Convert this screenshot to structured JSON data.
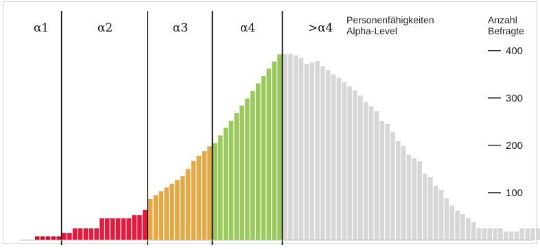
{
  "chart_data": {
    "type": "bar",
    "title": "",
    "legend_title": [
      "Personenfähigkeiten",
      "Alpha-Level"
    ],
    "ylabel": [
      "Anzahl",
      "Befragte"
    ],
    "ylim": [
      0,
      420
    ],
    "yticks": [
      100,
      200,
      300,
      400
    ],
    "levels": [
      {
        "label": "α1",
        "from": 0,
        "to": 5
      },
      {
        "label": "α2",
        "from": 5,
        "to": 21
      },
      {
        "label": "α3",
        "from": 21,
        "to": 33
      },
      {
        "label": "α4",
        "from": 33,
        "to": 46
      },
      {
        "label": ">α4",
        "from": 46,
        "to": 95
      }
    ],
    "colors": {
      "α1": "#c8102e",
      "α2": "#e8173c",
      "α3": "#e4a845",
      "α4": "#98c95a",
      ">α4": "#d7d7d7"
    },
    "values": [
      8,
      8,
      8,
      8,
      8,
      15,
      15,
      25,
      25,
      25,
      25,
      25,
      46,
      46,
      46,
      46,
      46,
      46,
      53,
      53,
      64,
      87,
      95,
      103,
      111,
      119,
      127,
      135,
      150,
      167,
      178,
      188,
      198,
      205,
      221,
      237,
      252,
      268,
      284,
      299,
      315,
      331,
      346,
      362,
      377,
      392,
      393,
      393,
      390,
      385,
      372,
      375,
      378,
      367,
      359,
      350,
      343,
      333,
      325,
      316,
      305,
      292,
      282,
      272,
      252,
      245,
      229,
      209,
      199,
      180,
      173,
      166,
      140,
      133,
      115,
      106,
      88,
      73,
      62,
      55,
      46,
      38,
      25,
      25,
      25,
      25,
      25,
      18,
      18,
      18,
      25,
      25,
      25,
      25,
      25
    ]
  }
}
